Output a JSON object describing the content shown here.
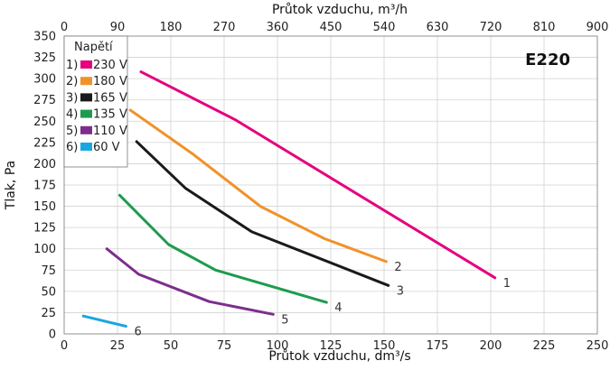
{
  "chart_data": {
    "type": "line",
    "xlabel": "Průtok vzduchu, dm³/s",
    "x2label": "Průtok vzduchu, m³/h",
    "ylabel": "Tlak, Pa",
    "xlim": [
      0,
      250
    ],
    "ylim": [
      0,
      350
    ],
    "x2lim": [
      0,
      900
    ],
    "x_ticks": [
      "0",
      "25",
      "50",
      "75",
      "100",
      "125",
      "150",
      "175",
      "200",
      "225",
      "250"
    ],
    "x2_ticks": [
      "0",
      "90",
      "180",
      "270",
      "360",
      "450",
      "540",
      "630",
      "720",
      "810",
      "900"
    ],
    "y_ticks": [
      "0",
      "25",
      "50",
      "75",
      "100",
      "125",
      "150",
      "175",
      "200",
      "225",
      "250",
      "275",
      "300",
      "325",
      "350"
    ],
    "grid": true,
    "badge": "E220",
    "legend": {
      "title": "Napětí",
      "position": "top-left",
      "entries": [
        {
          "num": "1)",
          "label": "230 V"
        },
        {
          "num": "2)",
          "label": "180 V"
        },
        {
          "num": "3)",
          "label": "165 V"
        },
        {
          "num": "4)",
          "label": "135 V"
        },
        {
          "num": "5)",
          "label": "110 V"
        },
        {
          "num": "6)",
          "label": "60 V"
        }
      ]
    },
    "series": [
      {
        "label": "1",
        "color": "#e5007e",
        "points": [
          [
            36,
            308
          ],
          [
            80,
            252
          ],
          [
            202,
            66
          ]
        ]
      },
      {
        "label": "2",
        "color": "#f0922b",
        "points": [
          [
            31,
            263
          ],
          [
            60,
            212
          ],
          [
            92,
            150
          ],
          [
            122,
            112
          ],
          [
            151,
            85
          ]
        ]
      },
      {
        "label": "3",
        "color": "#1a1a1a",
        "points": [
          [
            34,
            226
          ],
          [
            57,
            171
          ],
          [
            88,
            120
          ],
          [
            152,
            57
          ]
        ]
      },
      {
        "label": "4",
        "color": "#1e9b4f",
        "points": [
          [
            26,
            163
          ],
          [
            49,
            105
          ],
          [
            71,
            75
          ],
          [
            123,
            37
          ]
        ]
      },
      {
        "label": "5",
        "color": "#7d2e8c",
        "points": [
          [
            20,
            100
          ],
          [
            35,
            70
          ],
          [
            68,
            38
          ],
          [
            98,
            23
          ]
        ]
      },
      {
        "label": "6",
        "color": "#1aa7e0",
        "points": [
          [
            9,
            21
          ],
          [
            29,
            9
          ]
        ]
      }
    ]
  }
}
